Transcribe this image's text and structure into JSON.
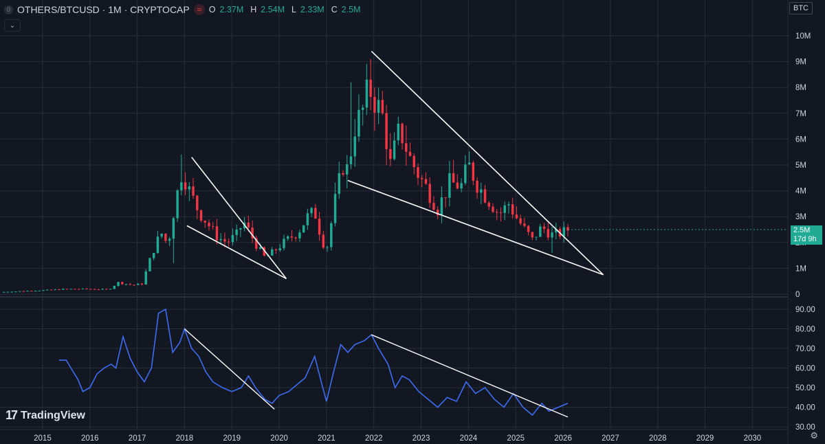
{
  "header": {
    "symbol_icon": "0",
    "title": "OTHERS/BTCUSD · 1M · CRYPTOCAP",
    "mark_icon": "≈",
    "ohlc": [
      {
        "k": "O",
        "v": "2.37M"
      },
      {
        "k": "H",
        "v": "2.54M"
      },
      {
        "k": "L",
        "v": "2.33M"
      },
      {
        "k": "C",
        "v": "2.5M"
      }
    ]
  },
  "currency_label": "BTC",
  "collapse_icon": "⌄",
  "logo": {
    "mark": "17",
    "text": "TradingView"
  },
  "price_tag": {
    "value": "2.5M",
    "countdown": "17d 9h"
  },
  "settings_icon": "⚙",
  "colors": {
    "background": "#131722",
    "grid": "#2a2e39",
    "up": "#22ab94",
    "down": "#f23645",
    "rsi": "#3d6ef5",
    "trendline": "#ffffff",
    "axis_text": "#d1d4dc"
  },
  "chart_data": [
    {
      "type": "candlestick",
      "title": "OTHERS/BTCUSD · 1M · CRYPTOCAP",
      "y_axis": {
        "ticks": [
          "0",
          "1M",
          "2M",
          "3M",
          "4M",
          "5M",
          "6M",
          "7M",
          "8M",
          "9M",
          "10M"
        ],
        "tick_values": [
          0,
          1,
          2,
          3,
          4,
          5,
          6,
          7,
          8,
          9,
          10
        ],
        "unit": "M",
        "range": [
          0,
          10.5
        ]
      },
      "x_axis": {
        "ticks": [
          "2015",
          "2016",
          "2017",
          "2018",
          "2019",
          "2020",
          "2021",
          "2022",
          "2023",
          "2024",
          "2025",
          "2026",
          "2027",
          "2028",
          "2029",
          "2030"
        ],
        "range": [
          2014.1,
          2030.75
        ]
      },
      "grid": true,
      "anchors": [
        [
          2014.1,
          0.08
        ],
        [
          2014.6,
          0.12
        ],
        [
          2015.0,
          0.15
        ],
        [
          2015.5,
          0.2
        ],
        [
          2016.0,
          0.2
        ],
        [
          2016.4,
          0.18
        ],
        [
          2016.6,
          0.45
        ],
        [
          2016.9,
          0.35
        ],
        [
          2017.1,
          0.4
        ],
        [
          2017.3,
          1.5
        ],
        [
          2017.5,
          2.4
        ],
        [
          2017.65,
          1.9
        ],
        [
          2017.8,
          3.5
        ],
        [
          2017.95,
          4.8
        ],
        [
          2018.1,
          4.0
        ],
        [
          2018.3,
          3.2
        ],
        [
          2018.5,
          2.7
        ],
        [
          2018.7,
          2.2
        ],
        [
          2018.9,
          2.0
        ],
        [
          2019.1,
          2.3
        ],
        [
          2019.25,
          2.8
        ],
        [
          2019.4,
          2.3
        ],
        [
          2019.55,
          1.8
        ],
        [
          2019.7,
          1.4
        ],
        [
          2019.85,
          1.6
        ],
        [
          2020.1,
          2.0
        ],
        [
          2020.4,
          2.4
        ],
        [
          2020.6,
          3.0
        ],
        [
          2020.75,
          3.2
        ],
        [
          2020.9,
          2.1
        ],
        [
          2021.0,
          1.7
        ],
        [
          2021.2,
          3.8
        ],
        [
          2021.35,
          5.0
        ],
        [
          2021.45,
          4.8
        ],
        [
          2021.6,
          6.5
        ],
        [
          2021.75,
          7.0
        ],
        [
          2021.9,
          8.0
        ],
        [
          2022.05,
          7.4
        ],
        [
          2022.2,
          6.8
        ],
        [
          2022.35,
          5.0
        ],
        [
          2022.55,
          6.4
        ],
        [
          2022.75,
          5.3
        ],
        [
          2022.95,
          4.6
        ],
        [
          2023.15,
          4.0
        ],
        [
          2023.35,
          3.3
        ],
        [
          2023.6,
          4.3
        ],
        [
          2023.85,
          4.2
        ],
        [
          2024.0,
          5.0
        ],
        [
          2024.2,
          4.2
        ],
        [
          2024.4,
          3.7
        ],
        [
          2024.65,
          3.1
        ],
        [
          2024.85,
          3.5
        ],
        [
          2025.0,
          3.0
        ],
        [
          2025.15,
          2.6
        ],
        [
          2025.35,
          2.1
        ],
        [
          2025.55,
          2.6
        ],
        [
          2025.75,
          2.3
        ],
        [
          2025.95,
          2.35
        ],
        [
          2026.1,
          2.5
        ]
      ],
      "wick_extremes": [
        {
          "x": 2021.95,
          "high": 9.1
        },
        {
          "x": 2021.55,
          "high": 8.2
        },
        {
          "x": 2025.75,
          "low": 1.6
        },
        {
          "x": 2017.95,
          "high": 5.4
        },
        {
          "x": 2017.8,
          "low": 1.2
        }
      ],
      "last_price": 2.5,
      "trendlines": [
        {
          "from": [
            2018.15,
            5.3
          ],
          "to": [
            2020.15,
            0.6
          ]
        },
        {
          "from": [
            2018.05,
            2.65
          ],
          "to": [
            2020.15,
            0.6
          ]
        },
        {
          "from": [
            2021.95,
            9.4
          ],
          "to": [
            2026.85,
            0.75
          ]
        },
        {
          "from": [
            2021.45,
            4.4
          ],
          "to": [
            2026.85,
            0.75
          ]
        }
      ]
    },
    {
      "type": "line",
      "series_role": "RSI oscillator",
      "y_axis": {
        "ticks": [
          "30.00",
          "40.00",
          "50.00",
          "60.00",
          "70.00",
          "80.00",
          "90.00"
        ],
        "tick_values": [
          30,
          40,
          50,
          60,
          70,
          80,
          90
        ],
        "range": [
          30,
          93
        ]
      },
      "x_axis": {
        "range": [
          2014.1,
          2030.75
        ]
      },
      "points": [
        [
          2015.35,
          64
        ],
        [
          2015.5,
          64
        ],
        [
          2015.6,
          60
        ],
        [
          2015.75,
          54
        ],
        [
          2015.85,
          48
        ],
        [
          2016.0,
          50
        ],
        [
          2016.15,
          57
        ],
        [
          2016.3,
          60
        ],
        [
          2016.45,
          62
        ],
        [
          2016.55,
          60
        ],
        [
          2016.7,
          76
        ],
        [
          2016.85,
          65
        ],
        [
          2017.0,
          58
        ],
        [
          2017.15,
          53
        ],
        [
          2017.3,
          60
        ],
        [
          2017.45,
          88
        ],
        [
          2017.6,
          90
        ],
        [
          2017.75,
          68
        ],
        [
          2017.9,
          73
        ],
        [
          2018.0,
          80
        ],
        [
          2018.15,
          70
        ],
        [
          2018.3,
          66
        ],
        [
          2018.45,
          58
        ],
        [
          2018.6,
          53
        ],
        [
          2018.8,
          50
        ],
        [
          2019.0,
          48
        ],
        [
          2019.2,
          50
        ],
        [
          2019.35,
          56
        ],
        [
          2019.5,
          50
        ],
        [
          2019.7,
          44
        ],
        [
          2019.85,
          42
        ],
        [
          2020.0,
          46
        ],
        [
          2020.2,
          48
        ],
        [
          2020.4,
          52
        ],
        [
          2020.55,
          55
        ],
        [
          2020.75,
          66
        ],
        [
          2020.9,
          52
        ],
        [
          2021.0,
          43
        ],
        [
          2021.15,
          58
        ],
        [
          2021.3,
          72
        ],
        [
          2021.45,
          68
        ],
        [
          2021.6,
          72
        ],
        [
          2021.8,
          74
        ],
        [
          2021.95,
          77
        ],
        [
          2022.1,
          70
        ],
        [
          2022.3,
          62
        ],
        [
          2022.45,
          50
        ],
        [
          2022.6,
          56
        ],
        [
          2022.75,
          54
        ],
        [
          2022.95,
          48
        ],
        [
          2023.15,
          44
        ],
        [
          2023.35,
          40
        ],
        [
          2023.55,
          45
        ],
        [
          2023.75,
          43
        ],
        [
          2023.95,
          53
        ],
        [
          2024.15,
          47
        ],
        [
          2024.35,
          50
        ],
        [
          2024.55,
          44
        ],
        [
          2024.75,
          40
        ],
        [
          2024.95,
          47
        ],
        [
          2025.15,
          40
        ],
        [
          2025.35,
          36
        ],
        [
          2025.55,
          42
        ],
        [
          2025.7,
          38
        ],
        [
          2025.9,
          40
        ],
        [
          2026.1,
          42
        ]
      ],
      "trendlines": [
        {
          "from": [
            2018.0,
            80
          ],
          "to": [
            2019.9,
            39
          ]
        },
        {
          "from": [
            2021.95,
            77
          ],
          "to": [
            2026.1,
            35
          ]
        }
      ]
    }
  ]
}
